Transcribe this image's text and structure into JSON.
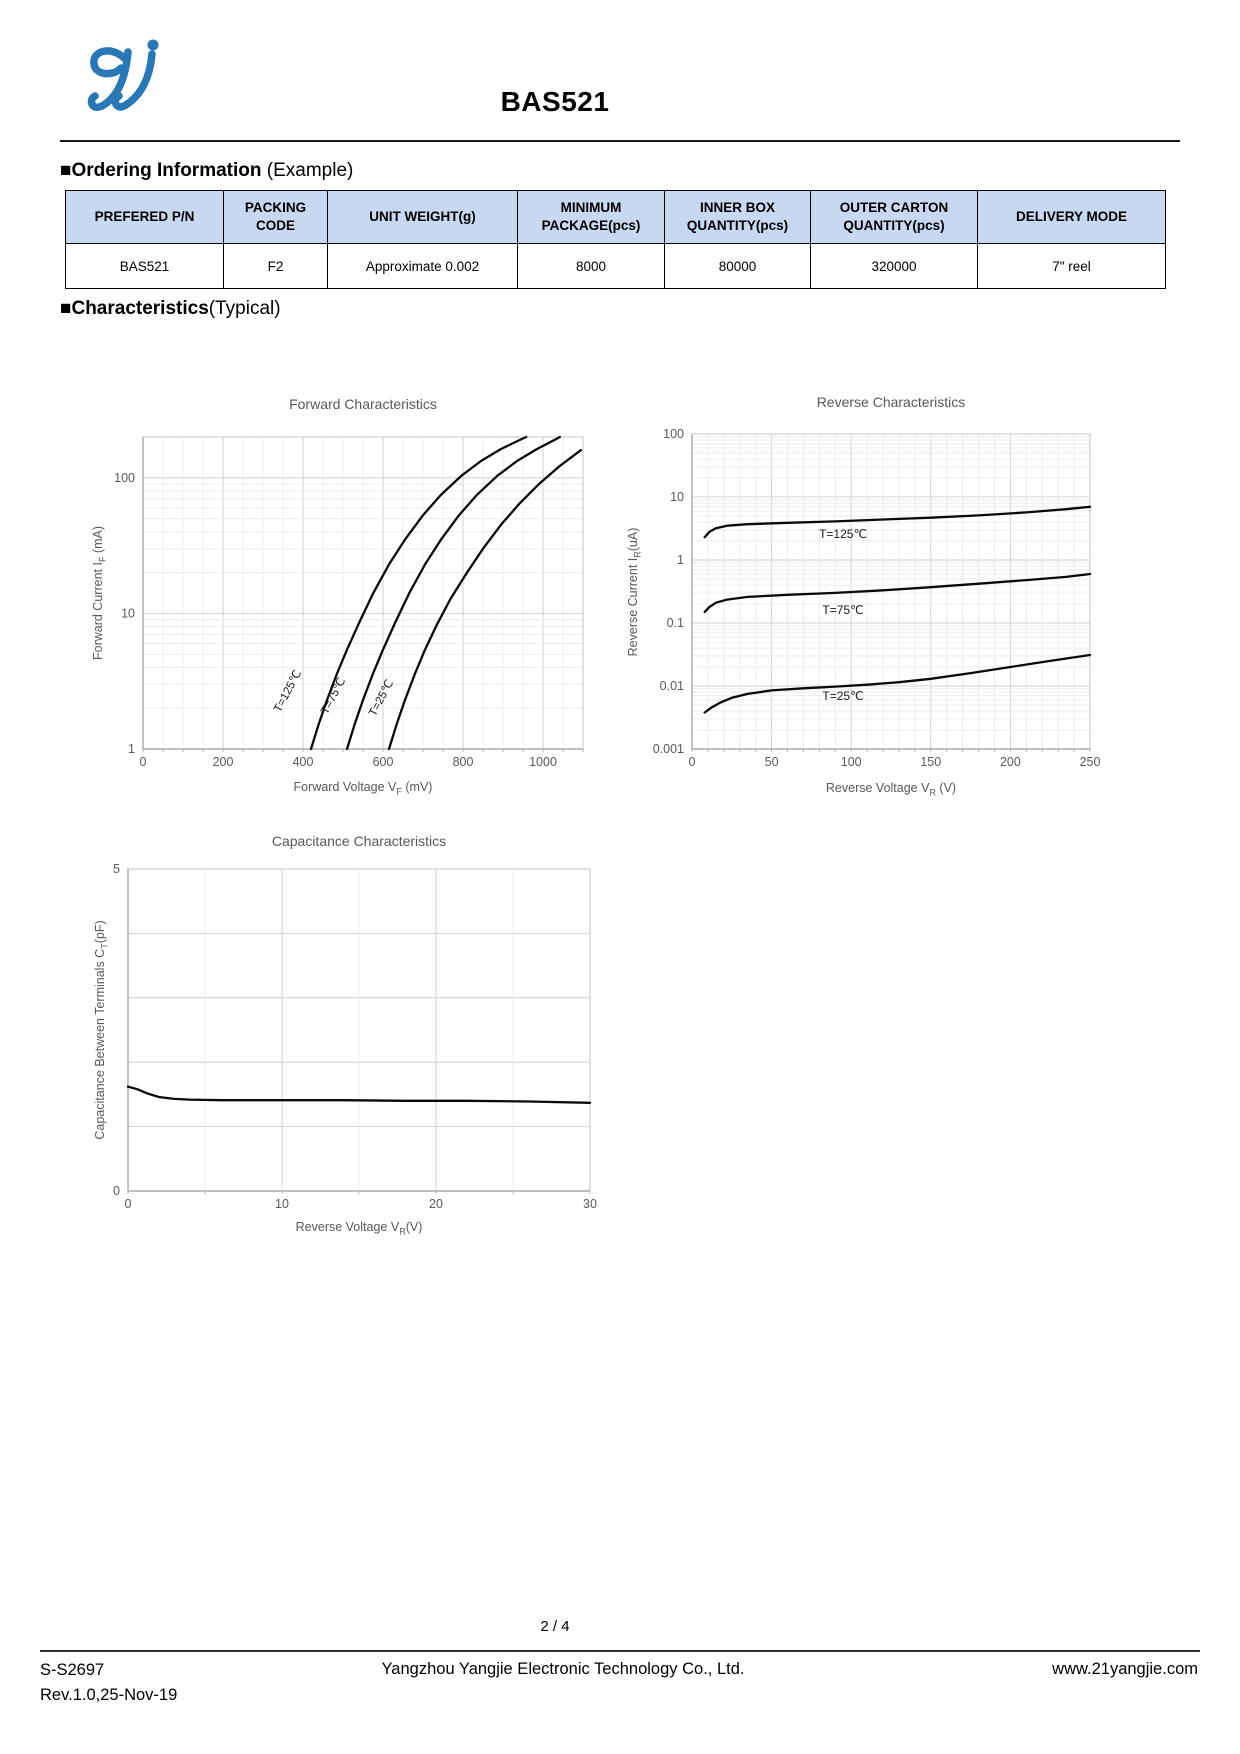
{
  "page": {
    "title": "BAS521",
    "page_number": "2 / 4"
  },
  "sections": {
    "ordering": {
      "heading_bold": "■Ordering Information",
      "heading_normal": " (Example)"
    },
    "characteristics": {
      "heading_bold": "■Characteristics",
      "heading_normal": "(Typical)"
    }
  },
  "ordering_table": {
    "headers": [
      "PREFERED P/N",
      "PACKING CODE",
      "UNIT WEIGHT(g)",
      "MINIMUM PACKAGE(pcs)",
      "INNER BOX QUANTITY(pcs)",
      "OUTER CARTON QUANTITY(pcs)",
      "DELIVERY MODE"
    ],
    "row": [
      "BAS521",
      "F2",
      "Approximate 0.002",
      "8000",
      "80000",
      "320000",
      "7\" reel"
    ]
  },
  "chart_data": [
    {
      "type": "line",
      "title": "Forward Characteristics",
      "xlabel": "Forward Voltage VF (mV)",
      "xlabel_parts": [
        "Forward Voltage V",
        "F",
        " (mV)"
      ],
      "ylabel": "Forward Current IF (mA)",
      "ylabel_parts": [
        "Forward Current I",
        "F",
        " (mA)"
      ],
      "xlim": [
        0,
        1100
      ],
      "ylim": [
        1,
        200
      ],
      "y_scale": "log",
      "grid": true,
      "legend_position": "on-curve",
      "x_ticks": [
        0,
        200,
        400,
        600,
        800,
        1000
      ],
      "y_tick_values": [
        1,
        10,
        100
      ],
      "y_tick_labels": [
        "1",
        "10",
        "100"
      ],
      "series": [
        {
          "name": "T=125℃",
          "points": [
            [
              420,
              1
            ],
            [
              440,
              1.55
            ],
            [
              460,
              2.3
            ],
            [
              485,
              3.6
            ],
            [
              510,
              5.4
            ],
            [
              540,
              8.5
            ],
            [
              575,
              14
            ],
            [
              615,
              23
            ],
            [
              655,
              35
            ],
            [
              700,
              53
            ],
            [
              745,
              75
            ],
            [
              795,
              103
            ],
            [
              845,
              133
            ],
            [
              895,
              163
            ],
            [
              945,
              192
            ],
            [
              958,
              200
            ]
          ]
        },
        {
          "name": "T=75℃",
          "points": [
            [
              510,
              1
            ],
            [
              530,
              1.55
            ],
            [
              550,
              2.3
            ],
            [
              575,
              3.6
            ],
            [
              600,
              5.4
            ],
            [
              630,
              8.5
            ],
            [
              665,
              14
            ],
            [
              705,
              23
            ],
            [
              745,
              35
            ],
            [
              790,
              53
            ],
            [
              835,
              75
            ],
            [
              885,
              103
            ],
            [
              935,
              133
            ],
            [
              985,
              163
            ],
            [
              1030,
              191
            ],
            [
              1042,
              200
            ]
          ]
        },
        {
          "name": "T=25℃",
          "points": [
            [
              615,
              1
            ],
            [
              635,
              1.55
            ],
            [
              655,
              2.3
            ],
            [
              680,
              3.6
            ],
            [
              705,
              5.4
            ],
            [
              735,
              8.3
            ],
            [
              770,
              13
            ],
            [
              810,
              20
            ],
            [
              850,
              30
            ],
            [
              895,
              45
            ],
            [
              940,
              64
            ],
            [
              990,
              90
            ],
            [
              1040,
              121
            ],
            [
              1095,
              160
            ]
          ]
        }
      ]
    },
    {
      "type": "line",
      "title": "Reverse Characteristics",
      "xlabel": "Reverse Voltage VR (V)",
      "xlabel_parts": [
        "Reverse Voltage V",
        "R",
        " (V)"
      ],
      "ylabel": "Reverse Current IR(uA)",
      "ylabel_parts": [
        "Reverse Current I",
        "R",
        "(uA)"
      ],
      "xlim": [
        0,
        250
      ],
      "ylim": [
        0.001,
        100
      ],
      "y_scale": "log",
      "grid": true,
      "legend_position": "on-curve",
      "x_ticks": [
        0,
        50,
        100,
        150,
        200,
        250
      ],
      "y_tick_values": [
        100,
        10,
        1,
        0.1,
        0.01,
        0.001
      ],
      "y_tick_labels": [
        "100",
        "10",
        "1",
        "0.1",
        "0.01",
        "0.001"
      ],
      "series": [
        {
          "name": "T=125℃",
          "points": [
            [
              8,
              2.3
            ],
            [
              11,
              2.8
            ],
            [
              15,
              3.2
            ],
            [
              22,
              3.5
            ],
            [
              35,
              3.7
            ],
            [
              60,
              3.9
            ],
            [
              90,
              4.1
            ],
            [
              120,
              4.4
            ],
            [
              150,
              4.7
            ],
            [
              180,
              5.1
            ],
            [
              210,
              5.7
            ],
            [
              235,
              6.4
            ],
            [
              250,
              7
            ]
          ]
        },
        {
          "name": "T=75℃",
          "points": [
            [
              8,
              0.15
            ],
            [
              11,
              0.18
            ],
            [
              15,
              0.21
            ],
            [
              22,
              0.235
            ],
            [
              35,
              0.26
            ],
            [
              60,
              0.28
            ],
            [
              90,
              0.3
            ],
            [
              120,
              0.33
            ],
            [
              150,
              0.37
            ],
            [
              180,
              0.42
            ],
            [
              210,
              0.48
            ],
            [
              235,
              0.54
            ],
            [
              250,
              0.6
            ]
          ]
        },
        {
          "name": "T=25℃",
          "points": [
            [
              8,
              0.0038
            ],
            [
              12,
              0.0045
            ],
            [
              18,
              0.0055
            ],
            [
              25,
              0.0065
            ],
            [
              35,
              0.0075
            ],
            [
              50,
              0.0085
            ],
            [
              70,
              0.0092
            ],
            [
              90,
              0.0098
            ],
            [
              110,
              0.0105
            ],
            [
              130,
              0.0115
            ],
            [
              150,
              0.013
            ],
            [
              175,
              0.016
            ],
            [
              200,
              0.02
            ],
            [
              225,
              0.025
            ],
            [
              250,
              0.031
            ]
          ]
        }
      ]
    },
    {
      "type": "line",
      "title": "Capacitance Characteristics",
      "xlabel": "Reverse Voltage VR(V)",
      "xlabel_parts": [
        "Reverse Voltage V",
        "R",
        "(V)"
      ],
      "ylabel": "Capacitance Between Terminals CT(pF)",
      "ylabel_parts": [
        "Capacitance Between Terminals C",
        "T",
        "(pF)"
      ],
      "xlim": [
        0,
        30
      ],
      "ylim": [
        0,
        5
      ],
      "y_scale": "linear",
      "grid": true,
      "x_ticks": [
        0,
        10,
        20,
        30
      ],
      "y_tick_values": [
        0,
        5
      ],
      "y_tick_labels": [
        "0",
        "5"
      ],
      "y_gridlines": [
        1,
        2,
        3,
        4
      ],
      "series": [
        {
          "name": "CT",
          "points": [
            [
              0,
              1.62
            ],
            [
              0.6,
              1.58
            ],
            [
              1.2,
              1.52
            ],
            [
              2,
              1.46
            ],
            [
              3,
              1.43
            ],
            [
              4,
              1.42
            ],
            [
              6,
              1.41
            ],
            [
              10,
              1.41
            ],
            [
              14,
              1.41
            ],
            [
              18,
              1.4
            ],
            [
              22,
              1.4
            ],
            [
              26,
              1.39
            ],
            [
              30,
              1.37
            ]
          ]
        }
      ]
    }
  ],
  "footer": {
    "doc_code": "S-S2697",
    "revision": "Rev.1.0,25-Nov-19",
    "company": "Yangzhou Yangjie Electronic Technology Co., Ltd.",
    "website": "www.21yangjie.com"
  },
  "colors": {
    "accent": "#2878b8",
    "table_header_bg": "#c6d9f1",
    "curve": "#0a0a0a",
    "axis_text": "#595959",
    "grid_minor": "#ececec",
    "grid_major": "#d2d2d2"
  }
}
